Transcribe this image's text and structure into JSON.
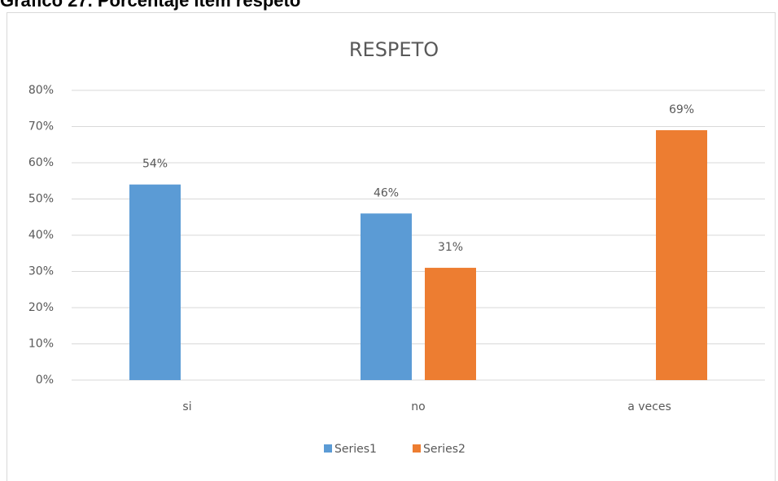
{
  "caption": "Gráfico 27. Porcentaje ítem respeto",
  "chart_data": {
    "type": "bar",
    "title": "RESPETO",
    "categories": [
      "si",
      "no",
      "a veces"
    ],
    "series": [
      {
        "name": "Series1",
        "color": "#5b9bd5",
        "values": [
          54,
          46,
          null
        ],
        "value_labels": [
          "54%",
          "46%",
          null
        ]
      },
      {
        "name": "Series2",
        "color": "#ed7d31",
        "values": [
          null,
          31,
          69
        ],
        "value_labels": [
          null,
          "31%",
          "69%"
        ]
      }
    ],
    "ylim": [
      0,
      80
    ],
    "yticks": [
      {
        "value": 0,
        "label": "0%"
      },
      {
        "value": 10,
        "label": "10%"
      },
      {
        "value": 20,
        "label": "20%"
      },
      {
        "value": 30,
        "label": "30%"
      },
      {
        "value": 40,
        "label": "40%"
      },
      {
        "value": 50,
        "label": "50%"
      },
      {
        "value": 60,
        "label": "60%"
      },
      {
        "value": 70,
        "label": "70%"
      },
      {
        "value": 80,
        "label": "80%"
      }
    ],
    "grid": true,
    "legend": "bottom"
  }
}
